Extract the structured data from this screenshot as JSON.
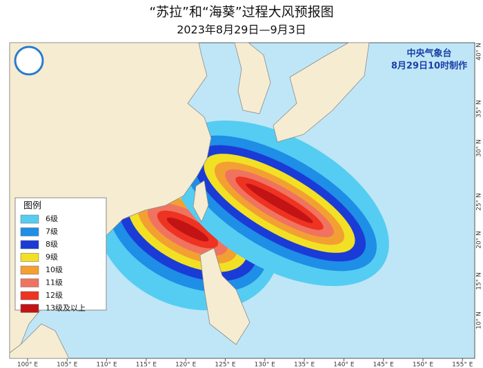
{
  "title": "“苏拉”和“海葵”过程大风预报图",
  "subtitle": "2023年8月29日—9月3日",
  "agency": "中央气象台",
  "issue_time": "8月29日10时制作",
  "legend": {
    "title": "图例",
    "items": [
      {
        "label": "6级",
        "color": "#55cdf2"
      },
      {
        "label": "7级",
        "color": "#1e8ee6"
      },
      {
        "label": "8级",
        "color": "#1b3bd6"
      },
      {
        "label": "9级",
        "color": "#f2e024"
      },
      {
        "label": "10级",
        "color": "#f3a033"
      },
      {
        "label": "11级",
        "color": "#f0735f"
      },
      {
        "label": "12级",
        "color": "#ee3322"
      },
      {
        "label": "13级及以上",
        "color": "#c21414"
      }
    ]
  },
  "lon_labels": [
    "100° E",
    "105° E",
    "110° E",
    "115° E",
    "120° E",
    "125° E",
    "130° E",
    "135° E",
    "140° E",
    "145° E",
    "150° E",
    "155° E"
  ],
  "lat_labels": [
    "40° N",
    "35° N",
    "30° N",
    "25° N",
    "20° N",
    "15° N",
    "10° N"
  ]
}
